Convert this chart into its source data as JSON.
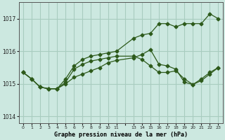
{
  "title": "Graphe pression niveau de la mer (hPa)",
  "bg_color": "#cce8e0",
  "grid_color": "#a8ccbf",
  "line_color": "#2d5a1b",
  "xlim": [
    -0.5,
    23.5
  ],
  "ylim": [
    1013.8,
    1017.5
  ],
  "yticks": [
    1014,
    1015,
    1016,
    1017
  ],
  "xtick_labels": [
    "0",
    "1",
    "2",
    "3",
    "4",
    "5",
    "6",
    "7",
    "8",
    "9",
    "10",
    "11",
    "",
    "13",
    "14",
    "15",
    "16",
    "17",
    "18",
    "19",
    "20",
    "21",
    "22",
    "23"
  ],
  "series": [
    {
      "x": [
        0,
        1,
        2,
        3,
        4,
        5,
        6,
        7,
        8,
        9,
        10,
        11,
        13,
        14,
        15,
        16,
        17,
        18,
        19,
        20,
        21,
        22,
        23
      ],
      "y": [
        1015.35,
        1015.15,
        1014.9,
        1014.85,
        1014.85,
        1015.15,
        1015.55,
        1015.75,
        1015.85,
        1015.9,
        1015.95,
        1016.0,
        1016.4,
        1016.5,
        1016.55,
        1016.85,
        1016.85,
        1016.75,
        1016.85,
        1016.85,
        1016.85,
        1017.15,
        1017.0
      ]
    },
    {
      "x": [
        0,
        1,
        2,
        3,
        4,
        5,
        6,
        7,
        8,
        9,
        10,
        11,
        13,
        14,
        15,
        16,
        17,
        18,
        19,
        20,
        21,
        22,
        23
      ],
      "y": [
        1015.35,
        1015.15,
        1014.9,
        1014.85,
        1014.85,
        1015.05,
        1015.45,
        1015.6,
        1015.7,
        1015.75,
        1015.8,
        1015.85,
        1015.85,
        1015.75,
        1015.55,
        1015.35,
        1015.35,
        1015.4,
        1015.15,
        1014.98,
        1015.15,
        1015.35,
        1015.5
      ]
    },
    {
      "x": [
        0,
        1,
        2,
        3,
        4,
        5,
        6,
        7,
        8,
        9,
        10,
        11,
        13,
        14,
        15,
        16,
        17,
        18,
        19,
        20,
        21,
        22,
        23
      ],
      "y": [
        1015.35,
        1015.15,
        1014.9,
        1014.85,
        1014.85,
        1015.0,
        1015.2,
        1015.3,
        1015.4,
        1015.5,
        1015.65,
        1015.72,
        1015.8,
        1015.9,
        1016.05,
        1015.6,
        1015.55,
        1015.45,
        1015.05,
        1014.98,
        1015.1,
        1015.3,
        1015.5
      ]
    }
  ]
}
